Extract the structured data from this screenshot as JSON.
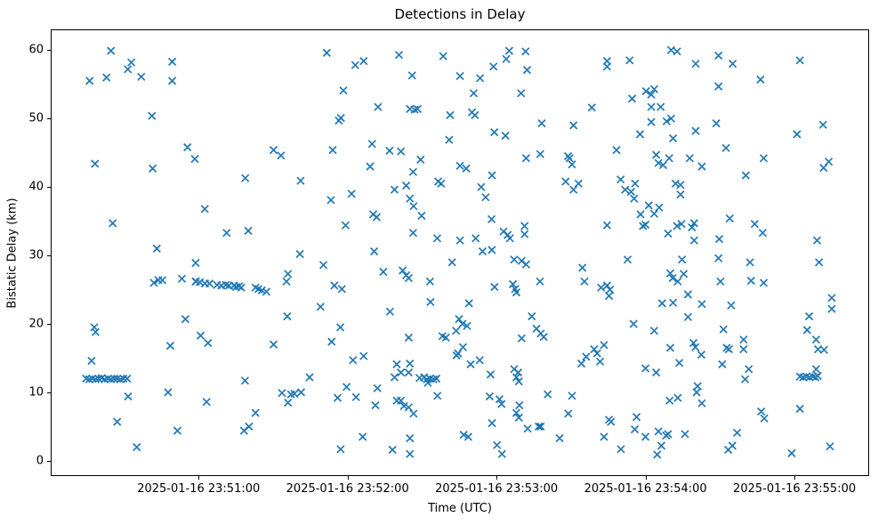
{
  "figure": {
    "title": "Detections in Delay",
    "xlabel": "Time (UTC)",
    "ylabel": "Bistatic Delay (km)",
    "background_color": "#ffffff",
    "marker_color": "#1f77b4"
  },
  "chart_data": {
    "type": "scatter",
    "marker": "x",
    "title": "Detections in Delay",
    "xlabel": "Time (UTC)",
    "ylabel": "Bistatic Delay (km)",
    "legend": null,
    "grid": false,
    "x_time_base": "2025-01-16 23:50:00",
    "x_unit": "seconds after 2025-01-16 23:50:00 UTC",
    "xlim": [
      0.8,
      329.7
    ],
    "ylim": [
      -2.1,
      62.9
    ],
    "x_ticks": [
      {
        "t": 60,
        "label": "2025-01-16 23:51:00"
      },
      {
        "t": 120,
        "label": "2025-01-16 23:52:00"
      },
      {
        "t": 180,
        "label": "2025-01-16 23:53:00"
      },
      {
        "t": 240,
        "label": "2025-01-16 23:54:00"
      },
      {
        "t": 300,
        "label": "2025-01-16 23:55:00"
      }
    ],
    "y_ticks": [
      0,
      10,
      20,
      30,
      40,
      50,
      60
    ],
    "points": [
      [
        24.7,
        59.9
      ],
      [
        32.9,
        58.2
      ],
      [
        31.5,
        57.2
      ],
      [
        36.9,
        56.1
      ],
      [
        49.4,
        58.3
      ],
      [
        49.4,
        55.5
      ],
      [
        16.1,
        55.5
      ],
      [
        22.9,
        56.0
      ],
      [
        41.2,
        50.4
      ],
      [
        55.5,
        45.8
      ],
      [
        58.5,
        44.1
      ],
      [
        18.3,
        43.4
      ],
      [
        41.5,
        42.7
      ],
      [
        25.4,
        34.7
      ],
      [
        43.2,
        31.0
      ],
      [
        42.0,
        26.0
      ],
      [
        43.8,
        26.4
      ],
      [
        45.4,
        26.4
      ],
      [
        53.3,
        26.6
      ],
      [
        58.8,
        26.2
      ],
      [
        54.7,
        20.7
      ],
      [
        18.0,
        19.5
      ],
      [
        18.5,
        18.8
      ],
      [
        16.9,
        14.6
      ],
      [
        48.6,
        16.8
      ],
      [
        14.7,
        12.0
      ],
      [
        16.0,
        11.9
      ],
      [
        17.2,
        12.0
      ],
      [
        18.5,
        11.9
      ],
      [
        19.7,
        12.0
      ],
      [
        21.0,
        12.1
      ],
      [
        22.2,
        11.9
      ],
      [
        23.5,
        12.0
      ],
      [
        24.7,
        11.9
      ],
      [
        26.0,
        12.0
      ],
      [
        27.2,
        12.0
      ],
      [
        28.5,
        11.9
      ],
      [
        29.7,
        12.0
      ],
      [
        31.2,
        12.0
      ],
      [
        47.7,
        10.0
      ],
      [
        31.6,
        9.4
      ],
      [
        27.2,
        5.7
      ],
      [
        51.5,
        4.4
      ],
      [
        35.1,
        2.0
      ],
      [
        111.6,
        59.6
      ],
      [
        123.1,
        57.8
      ],
      [
        126.5,
        58.4
      ],
      [
        118.3,
        54.1
      ],
      [
        116.5,
        49.7
      ],
      [
        117.3,
        50.1
      ],
      [
        90.2,
        45.4
      ],
      [
        93.2,
        44.6
      ],
      [
        114.0,
        45.4
      ],
      [
        78.8,
        41.3
      ],
      [
        101.1,
        40.9
      ],
      [
        121.6,
        39.0
      ],
      [
        113.3,
        38.1
      ],
      [
        62.5,
        36.8
      ],
      [
        119.2,
        34.4
      ],
      [
        71.3,
        33.3
      ],
      [
        80.0,
        33.6
      ],
      [
        100.8,
        30.2
      ],
      [
        58.8,
        28.9
      ],
      [
        59.0,
        26.2
      ],
      [
        60.5,
        26.1
      ],
      [
        62.6,
        25.9
      ],
      [
        64.4,
        25.9
      ],
      [
        67.4,
        25.7
      ],
      [
        69.2,
        25.6
      ],
      [
        71.0,
        25.7
      ],
      [
        72.2,
        25.6
      ],
      [
        74.3,
        25.6
      ],
      [
        75.1,
        25.4
      ],
      [
        76.3,
        25.5
      ],
      [
        77.2,
        25.3
      ],
      [
        82.9,
        25.3
      ],
      [
        84.1,
        25.1
      ],
      [
        85.5,
        24.9
      ],
      [
        87.3,
        24.7
      ],
      [
        96.0,
        27.3
      ],
      [
        95.4,
        26.2
      ],
      [
        110.3,
        28.6
      ],
      [
        114.7,
        25.6
      ],
      [
        117.7,
        25.1
      ],
      [
        109.1,
        22.5
      ],
      [
        95.7,
        21.1
      ],
      [
        117.1,
        19.5
      ],
      [
        60.8,
        18.3
      ],
      [
        63.8,
        17.2
      ],
      [
        90.2,
        17.0
      ],
      [
        113.6,
        17.4
      ],
      [
        122.2,
        14.7
      ],
      [
        126.5,
        15.3
      ],
      [
        78.7,
        11.7
      ],
      [
        104.7,
        12.2
      ],
      [
        93.6,
        9.9
      ],
      [
        97.2,
        9.7
      ],
      [
        98.6,
        9.8
      ],
      [
        101.3,
        10.0
      ],
      [
        96.0,
        8.5
      ],
      [
        116.0,
        9.2
      ],
      [
        119.6,
        10.8
      ],
      [
        123.4,
        9.3
      ],
      [
        63.2,
        8.6
      ],
      [
        82.9,
        7.0
      ],
      [
        80.3,
        5.0
      ],
      [
        78.3,
        4.4
      ],
      [
        126.1,
        3.5
      ],
      [
        117.2,
        1.7
      ],
      [
        140.7,
        59.3
      ],
      [
        158.5,
        59.1
      ],
      [
        185.1,
        59.9
      ],
      [
        183.9,
        58.7
      ],
      [
        191.7,
        59.8
      ],
      [
        178.8,
        57.6
      ],
      [
        192.3,
        57.1
      ],
      [
        146.0,
        56.3
      ],
      [
        165.3,
        56.2
      ],
      [
        173.4,
        55.9
      ],
      [
        170.8,
        53.7
      ],
      [
        189.9,
        53.7
      ],
      [
        132.3,
        51.7
      ],
      [
        145.1,
        51.4
      ],
      [
        147.0,
        51.3
      ],
      [
        148.2,
        51.4
      ],
      [
        161.3,
        50.5
      ],
      [
        170.1,
        50.9
      ],
      [
        171.3,
        50.5
      ],
      [
        179.1,
        48.0
      ],
      [
        183.6,
        47.5
      ],
      [
        129.9,
        46.3
      ],
      [
        160.9,
        46.9
      ],
      [
        136.9,
        45.3
      ],
      [
        141.5,
        45.2
      ],
      [
        149.4,
        44.0
      ],
      [
        191.9,
        44.2
      ],
      [
        129.1,
        43.0
      ],
      [
        146.4,
        42.2
      ],
      [
        165.3,
        43.1
      ],
      [
        167.8,
        42.7
      ],
      [
        178.2,
        41.7
      ],
      [
        156.5,
        40.8
      ],
      [
        157.7,
        40.5
      ],
      [
        138.9,
        39.6
      ],
      [
        143.6,
        40.2
      ],
      [
        173.8,
        40.0
      ],
      [
        175.6,
        38.5
      ],
      [
        145.1,
        38.3
      ],
      [
        146.6,
        37.2
      ],
      [
        149.8,
        35.8
      ],
      [
        130.3,
        36.0
      ],
      [
        131.7,
        35.6
      ],
      [
        178.0,
        35.3
      ],
      [
        146.4,
        33.3
      ],
      [
        182.8,
        33.5
      ],
      [
        184.5,
        33.0
      ],
      [
        185.4,
        32.5
      ],
      [
        191.3,
        34.3
      ],
      [
        191.3,
        33.1
      ],
      [
        156.1,
        32.5
      ],
      [
        165.3,
        32.2
      ],
      [
        171.6,
        32.5
      ],
      [
        130.7,
        30.6
      ],
      [
        178.1,
        30.8
      ],
      [
        174.4,
        30.6
      ],
      [
        187.1,
        29.4
      ],
      [
        190.1,
        29.2
      ],
      [
        191.9,
        28.7
      ],
      [
        162.1,
        29.0
      ],
      [
        134.4,
        27.6
      ],
      [
        142.2,
        27.8
      ],
      [
        143.6,
        27.1
      ],
      [
        144.6,
        26.7
      ],
      [
        153.2,
        26.2
      ],
      [
        179.2,
        25.4
      ],
      [
        186.6,
        25.8
      ],
      [
        187.5,
        25.1
      ],
      [
        188.0,
        24.6
      ],
      [
        153.4,
        23.2
      ],
      [
        168.9,
        23.0
      ],
      [
        137.1,
        21.8
      ],
      [
        164.9,
        20.7
      ],
      [
        166.3,
        20.0
      ],
      [
        163.7,
        19.0
      ],
      [
        168.1,
        19.7
      ],
      [
        158.2,
        18.2
      ],
      [
        159.6,
        18.0
      ],
      [
        194.2,
        21.1
      ],
      [
        144.6,
        18.0
      ],
      [
        190.1,
        17.9
      ],
      [
        166.5,
        16.6
      ],
      [
        163.9,
        15.4
      ],
      [
        164.5,
        15.7
      ],
      [
        169.6,
        14.1
      ],
      [
        173.2,
        14.7
      ],
      [
        139.8,
        14.1
      ],
      [
        145.1,
        14.2
      ],
      [
        138.9,
        12.2
      ],
      [
        141.5,
        12.9
      ],
      [
        144.6,
        12.9
      ],
      [
        149.0,
        12.1
      ],
      [
        150.8,
        12.2
      ],
      [
        152.0,
        11.9
      ],
      [
        153.2,
        12.0
      ],
      [
        154.6,
        11.9
      ],
      [
        155.8,
        12.0
      ],
      [
        152.3,
        11.4
      ],
      [
        177.6,
        12.6
      ],
      [
        187.1,
        13.4
      ],
      [
        188.7,
        12.9
      ],
      [
        188.0,
        12.2
      ],
      [
        189.0,
        11.6
      ],
      [
        132.0,
        10.6
      ],
      [
        156.2,
        9.5
      ],
      [
        131.2,
        8.1
      ],
      [
        139.8,
        8.8
      ],
      [
        141.5,
        8.8
      ],
      [
        142.7,
        8.0
      ],
      [
        144.6,
        7.8
      ],
      [
        146.6,
        6.9
      ],
      [
        177.2,
        9.4
      ],
      [
        181.2,
        9.0
      ],
      [
        182.0,
        8.3
      ],
      [
        189.2,
        8.1
      ],
      [
        188.0,
        7.0
      ],
      [
        189.0,
        6.3
      ],
      [
        178.2,
        5.5
      ],
      [
        192.5,
        4.7
      ],
      [
        166.8,
        3.8
      ],
      [
        168.6,
        3.5
      ],
      [
        145.1,
        3.3
      ],
      [
        145.1,
        1.0
      ],
      [
        138.1,
        1.6
      ],
      [
        180.2,
        2.3
      ],
      [
        182.2,
        1.0
      ],
      [
        250.3,
        60.0
      ],
      [
        252.7,
        59.8
      ],
      [
        224.5,
        58.4
      ],
      [
        224.5,
        57.6
      ],
      [
        233.6,
        58.5
      ],
      [
        260.2,
        58.0
      ],
      [
        240.2,
        54.0
      ],
      [
        243.5,
        54.3
      ],
      [
        242.3,
        53.5
      ],
      [
        234.6,
        52.9
      ],
      [
        242.3,
        51.7
      ],
      [
        246.1,
        51.7
      ],
      [
        218.4,
        51.6
      ],
      [
        242.3,
        49.5
      ],
      [
        248.5,
        49.6
      ],
      [
        250.3,
        50.0
      ],
      [
        198.2,
        49.3
      ],
      [
        211.0,
        49.0
      ],
      [
        260.2,
        48.2
      ],
      [
        237.8,
        47.7
      ],
      [
        251.1,
        47.1
      ],
      [
        197.6,
        44.8
      ],
      [
        208.8,
        44.5
      ],
      [
        209.4,
        44.2
      ],
      [
        210.4,
        43.3
      ],
      [
        228.3,
        45.4
      ],
      [
        244.3,
        44.7
      ],
      [
        245.2,
        43.5
      ],
      [
        247.1,
        43.2
      ],
      [
        249.5,
        44.2
      ],
      [
        257.8,
        44.2
      ],
      [
        262.7,
        43.0
      ],
      [
        207.8,
        40.8
      ],
      [
        213.0,
        40.5
      ],
      [
        211.0,
        39.6
      ],
      [
        230.0,
        41.1
      ],
      [
        235.8,
        40.5
      ],
      [
        231.8,
        39.6
      ],
      [
        234.2,
        39.3
      ],
      [
        252.1,
        40.5
      ],
      [
        254.1,
        40.3
      ],
      [
        254.1,
        38.9
      ],
      [
        235.4,
        38.3
      ],
      [
        241.3,
        37.3
      ],
      [
        245.5,
        37.0
      ],
      [
        243.5,
        36.1
      ],
      [
        238.0,
        36.0
      ],
      [
        224.5,
        34.4
      ],
      [
        239.0,
        34.3
      ],
      [
        240.0,
        34.5
      ],
      [
        249.1,
        33.2
      ],
      [
        252.7,
        34.3
      ],
      [
        254.5,
        34.6
      ],
      [
        258.7,
        34.1
      ],
      [
        259.6,
        34.7
      ],
      [
        259.6,
        32.2
      ],
      [
        232.8,
        29.4
      ],
      [
        254.7,
        29.4
      ],
      [
        214.6,
        28.2
      ],
      [
        197.5,
        26.2
      ],
      [
        215.4,
        26.2
      ],
      [
        222.1,
        25.3
      ],
      [
        224.5,
        25.6
      ],
      [
        225.7,
        25.0
      ],
      [
        225.3,
        24.1
      ],
      [
        250.0,
        27.4
      ],
      [
        250.9,
        26.7
      ],
      [
        253.0,
        26.2
      ],
      [
        255.4,
        27.3
      ],
      [
        257.1,
        24.3
      ],
      [
        246.7,
        23.0
      ],
      [
        251.1,
        23.1
      ],
      [
        262.7,
        22.9
      ],
      [
        257.1,
        21.0
      ],
      [
        235.2,
        20.0
      ],
      [
        243.5,
        19.0
      ],
      [
        196.1,
        19.3
      ],
      [
        197.8,
        18.6
      ],
      [
        199.0,
        18.1
      ],
      [
        223.3,
        16.9
      ],
      [
        219.3,
        16.3
      ],
      [
        220.5,
        15.7
      ],
      [
        216.1,
        15.2
      ],
      [
        221.7,
        14.5
      ],
      [
        214.2,
        14.2
      ],
      [
        259.3,
        17.2
      ],
      [
        260.1,
        16.6
      ],
      [
        262.5,
        15.5
      ],
      [
        250.0,
        16.5
      ],
      [
        253.6,
        14.3
      ],
      [
        240.0,
        13.5
      ],
      [
        244.3,
        12.9
      ],
      [
        261.0,
        10.9
      ],
      [
        260.6,
        10.0
      ],
      [
        200.6,
        9.7
      ],
      [
        210.4,
        9.5
      ],
      [
        249.7,
        8.8
      ],
      [
        253.0,
        9.2
      ],
      [
        262.7,
        8.4
      ],
      [
        208.9,
        6.9
      ],
      [
        225.3,
        6.0
      ],
      [
        226.1,
        5.7
      ],
      [
        236.4,
        6.4
      ],
      [
        197.0,
        5.0
      ],
      [
        197.8,
        5.0
      ],
      [
        235.7,
        4.6
      ],
      [
        240.0,
        3.5
      ],
      [
        245.2,
        4.3
      ],
      [
        248.3,
        3.7
      ],
      [
        249.1,
        3.9
      ],
      [
        255.9,
        3.9
      ],
      [
        205.4,
        3.3
      ],
      [
        223.3,
        3.5
      ],
      [
        230.1,
        1.7
      ],
      [
        246.4,
        2.2
      ],
      [
        244.7,
        0.9
      ],
      [
        269.4,
        59.2
      ],
      [
        275.1,
        58.0
      ],
      [
        302.2,
        58.5
      ],
      [
        286.3,
        55.7
      ],
      [
        269.4,
        54.7
      ],
      [
        268.5,
        49.3
      ],
      [
        311.5,
        49.1
      ],
      [
        301.0,
        47.7
      ],
      [
        272.4,
        45.7
      ],
      [
        287.6,
        44.2
      ],
      [
        313.8,
        43.7
      ],
      [
        311.7,
        42.8
      ],
      [
        280.4,
        41.7
      ],
      [
        273.9,
        35.4
      ],
      [
        284.0,
        34.6
      ],
      [
        287.2,
        33.3
      ],
      [
        269.7,
        32.4
      ],
      [
        309.1,
        32.2
      ],
      [
        269.4,
        29.6
      ],
      [
        282.1,
        29.0
      ],
      [
        309.9,
        29.0
      ],
      [
        270.2,
        26.2
      ],
      [
        282.5,
        26.3
      ],
      [
        287.6,
        26.0
      ],
      [
        274.5,
        22.7
      ],
      [
        315.0,
        23.8
      ],
      [
        315.0,
        22.2
      ],
      [
        305.9,
        21.1
      ],
      [
        271.4,
        19.2
      ],
      [
        305.1,
        19.1
      ],
      [
        279.5,
        17.7
      ],
      [
        279.5,
        16.3
      ],
      [
        272.7,
        16.5
      ],
      [
        273.6,
        16.3
      ],
      [
        308.7,
        17.7
      ],
      [
        309.5,
        16.3
      ],
      [
        311.9,
        16.2
      ],
      [
        270.9,
        14.1
      ],
      [
        281.6,
        13.4
      ],
      [
        280.1,
        11.9
      ],
      [
        308.7,
        13.4
      ],
      [
        302.2,
        12.3
      ],
      [
        303.5,
        12.2
      ],
      [
        304.8,
        12.3
      ],
      [
        306.1,
        12.2
      ],
      [
        307.4,
        12.3
      ],
      [
        308.5,
        12.2
      ],
      [
        309.4,
        12.4
      ],
      [
        302.2,
        7.6
      ],
      [
        286.6,
        7.2
      ],
      [
        287.8,
        6.2
      ],
      [
        276.9,
        4.1
      ],
      [
        273.3,
        1.6
      ],
      [
        275.0,
        2.2
      ],
      [
        298.9,
        1.1
      ],
      [
        314.3,
        2.1
      ]
    ]
  }
}
